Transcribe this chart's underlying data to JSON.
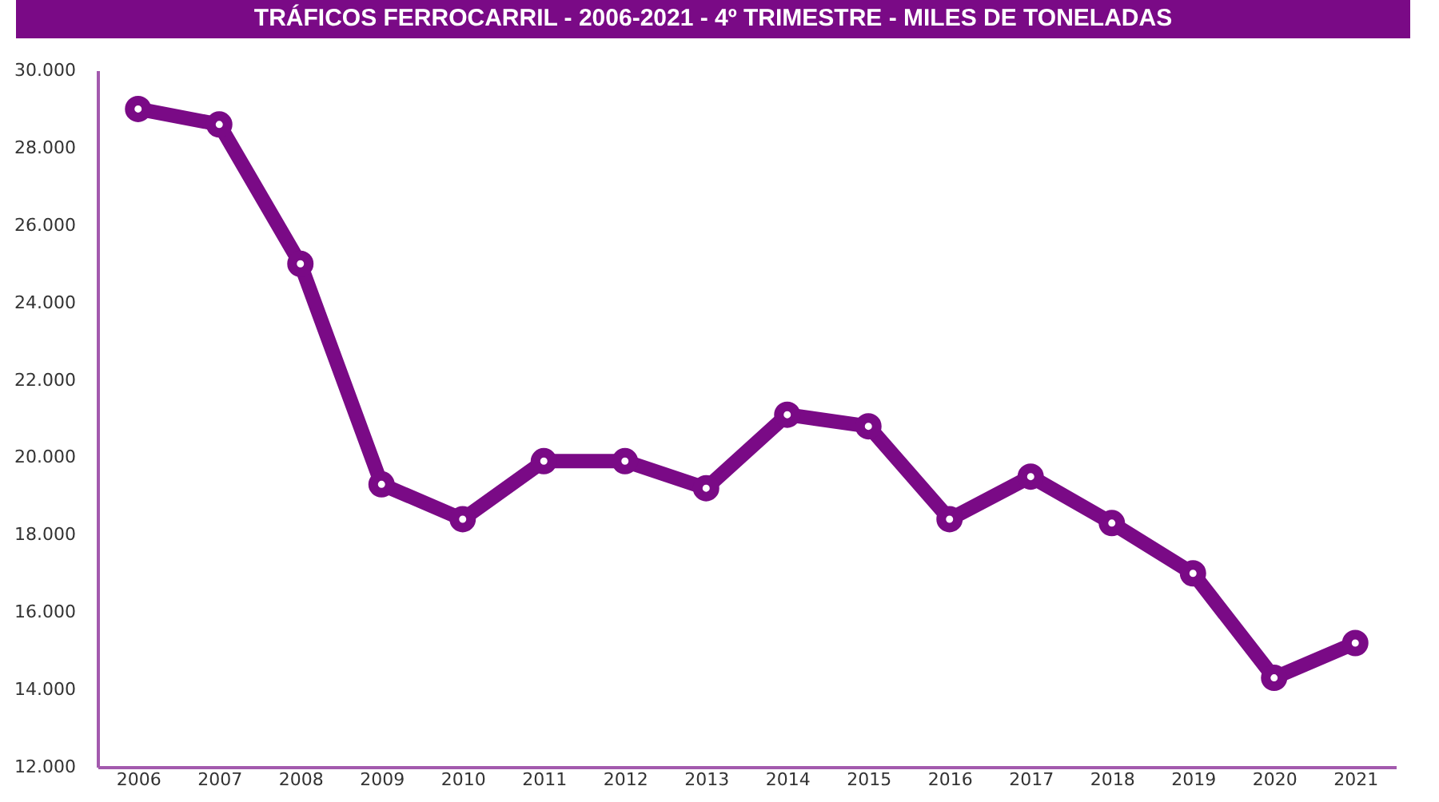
{
  "chart_data": {
    "type": "line",
    "title": "TRÁFICOS FERROCARRIL - 2006-2021 - 4º TRIMESTRE - MILES DE TONELADAS",
    "categories": [
      "2006",
      "2007",
      "2008",
      "2009",
      "2010",
      "2011",
      "2012",
      "2013",
      "2014",
      "2015",
      "2016",
      "2017",
      "2018",
      "2019",
      "2020",
      "2021"
    ],
    "series": [
      {
        "color": "#7a0a86",
        "values": [
          29000,
          28600,
          25000,
          19300,
          18400,
          19900,
          19900,
          19200,
          21100,
          20800,
          18400,
          19500,
          18300,
          17000,
          14300,
          15200
        ]
      }
    ],
    "ylim": [
      12000,
      30000
    ],
    "yticks": [
      {
        "value": 12000,
        "label": "12.000"
      },
      {
        "value": 14000,
        "label": "14.000"
      },
      {
        "value": 16000,
        "label": "16.000"
      },
      {
        "value": 18000,
        "label": "18.000"
      },
      {
        "value": 20000,
        "label": "20.000"
      },
      {
        "value": 22000,
        "label": "22.000"
      },
      {
        "value": 24000,
        "label": "24.000"
      },
      {
        "value": 26000,
        "label": "26.000"
      },
      {
        "value": 28000,
        "label": "28.000"
      },
      {
        "value": 30000,
        "label": "30.000"
      }
    ],
    "grid": false,
    "marker": "circle",
    "legend": false
  }
}
